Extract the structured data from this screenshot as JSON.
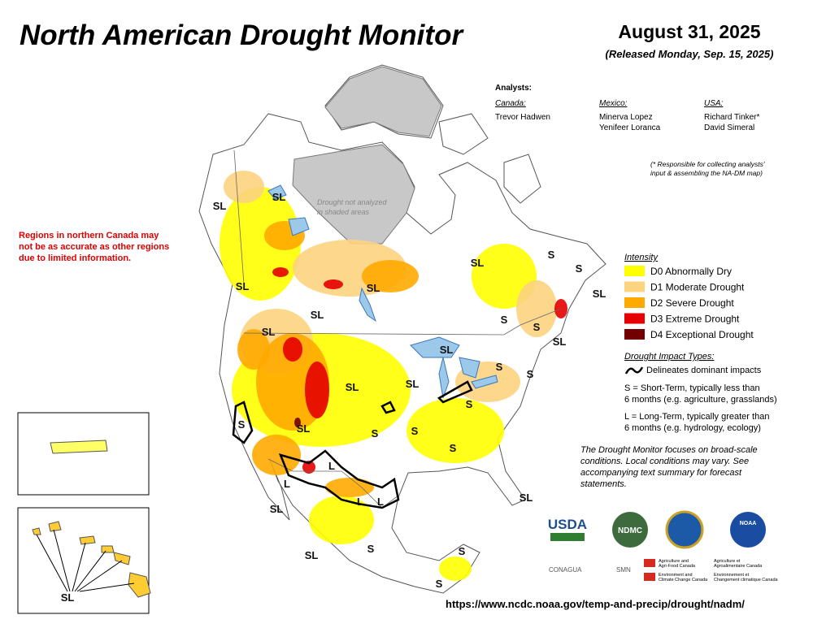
{
  "header": {
    "title": "North American Drought Monitor",
    "date": "August 31, 2025",
    "released": "(Released Monday, Sep. 15, 2025)"
  },
  "analysts": {
    "heading": "Analysts:",
    "canada": {
      "label": "Canada:",
      "names": [
        "Trevor Hadwen"
      ]
    },
    "mexico": {
      "label": "Mexico:",
      "names": [
        "Minerva Lopez",
        "Yenifeer Loranca"
      ]
    },
    "usa": {
      "label": "USA:",
      "names": [
        "Richard Tinker*",
        "David Simeral"
      ]
    },
    "note": [
      "(* Responsible for collecting analysts'",
      "input & assembling the NA-DM map)"
    ]
  },
  "warning": [
    "Regions in northern Canada may",
    "not be as accurate as other regions",
    "due to limited information."
  ],
  "shaded_note": [
    "Drought not analyzed",
    "in shaded areas"
  ],
  "legend": {
    "title": "Intensity",
    "items": [
      {
        "label": "D0 Abnormally Dry",
        "color": "#ffff00"
      },
      {
        "label": "D1 Moderate Drought",
        "color": "#fcd37f"
      },
      {
        "label": "D2 Severe Drought",
        "color": "#ffaa00"
      },
      {
        "label": "D3 Extreme Drought",
        "color": "#e60000"
      },
      {
        "label": "D4 Exceptional Drought",
        "color": "#730000"
      }
    ]
  },
  "impacts": {
    "title": "Drought Impact Types:",
    "line": "Delineates dominant impacts",
    "short": [
      "S = Short-Term, typically less than",
      "6 months (e.g. agriculture, grasslands)"
    ],
    "long": [
      "L = Long-Term, typically greater than",
      "6 months (e.g. hydrology, ecology)"
    ]
  },
  "disclaimer": [
    "The Drought Monitor focuses on broad-scale",
    "conditions. Local conditions may vary. See",
    "accompanying text summary for forecast",
    "statements."
  ],
  "map": {
    "labels": [
      "SL",
      "SL",
      "SL",
      "SL",
      "SL",
      "SL",
      "SL",
      "S",
      "S",
      "SL",
      "S",
      "S",
      "SL",
      "SL",
      "SL",
      "S",
      "S",
      "SL",
      "S",
      "S",
      "SL",
      "S",
      "S",
      "S",
      "L",
      "L",
      "L",
      "L",
      "SL",
      "SL",
      "SL",
      "S",
      "S",
      "S",
      "SL"
    ]
  },
  "logos": {
    "usda": "USDA",
    "ndmc": "NDMC",
    "noaa": "NOAA",
    "conagua": "CONAGUA",
    "smn": "SMN",
    "canada": [
      [
        "Agriculture and",
        "Agri-Food Canada"
      ],
      [
        "Agriculture et",
        "Agroalimentaire Canada"
      ],
      [
        "Environment and",
        "Climate Change Canada"
      ],
      [
        "Environnement et",
        "Changement climatique Canada"
      ]
    ]
  },
  "url": "https://www.ncdc.noaa.gov/temp-and-precip/drought/nadm/"
}
